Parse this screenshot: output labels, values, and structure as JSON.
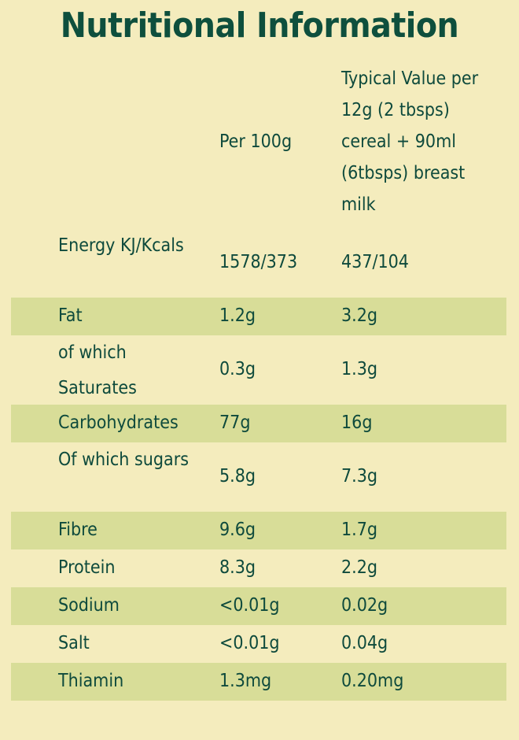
{
  "title": "Nutritional Information",
  "table": {
    "headers": {
      "nutrient": "",
      "per100g": "Per 100g",
      "typical": "Typical Value per 12g (2 tbsps) cereal + 90ml (6tbsps) breast milk"
    },
    "rows": [
      {
        "nutrient": "Energy KJ/Kcals",
        "per100g": "1578/373",
        "typical": "437/104"
      },
      {
        "nutrient": "Fat",
        "per100g": "1.2g",
        "typical": "3.2g"
      },
      {
        "nutrient": "of which Saturates",
        "per100g": "0.3g",
        "typical": "1.3g"
      },
      {
        "nutrient": "Carbohydrates",
        "per100g": "77g",
        "typical": "16g"
      },
      {
        "nutrient": "Of which sugars",
        "per100g": "5.8g",
        "typical": "7.3g"
      },
      {
        "nutrient": "Fibre",
        "per100g": "9.6g",
        "typical": "1.7g"
      },
      {
        "nutrient": "Protein",
        "per100g": "8.3g",
        "typical": "2.2g"
      },
      {
        "nutrient": "Sodium",
        "per100g": "<0.01g",
        "typical": "0.02g"
      },
      {
        "nutrient": "Salt",
        "per100g": "<0.01g",
        "typical": "0.04g"
      },
      {
        "nutrient": "Thiamin",
        "per100g": "1.3mg",
        "typical": "0.20mg"
      }
    ]
  }
}
